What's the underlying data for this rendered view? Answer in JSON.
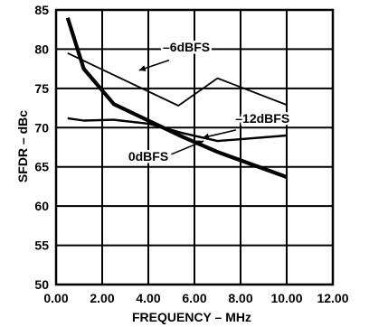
{
  "chart_data": {
    "type": "line",
    "title": "",
    "xlabel": "FREQUENCY – MHz",
    "ylabel": "SFDR – dBc",
    "xlim": [
      0,
      12
    ],
    "ylim": [
      50,
      85
    ],
    "xticks": [
      0,
      2,
      4,
      6,
      8,
      10,
      12
    ],
    "xtick_labels": [
      "0.00",
      "2.00",
      "4.00",
      "6.00",
      "8.00",
      "10.00",
      "12.00"
    ],
    "yticks": [
      50,
      55,
      60,
      65,
      70,
      75,
      80,
      85
    ],
    "ytick_labels": [
      "50",
      "55",
      "60",
      "65",
      "70",
      "75",
      "80",
      "85"
    ],
    "grid": true,
    "series": [
      {
        "name": "–6dBFS",
        "x": [
          0.5,
          5.3,
          7.0,
          10.0
        ],
        "y": [
          79.5,
          72.8,
          76.3,
          72.9
        ]
      },
      {
        "name": "–12dBFS",
        "x": [
          0.5,
          1.2,
          2.5,
          4.0,
          5.5,
          7.0,
          10.0
        ],
        "y": [
          71.2,
          70.9,
          71.0,
          70.5,
          69.3,
          68.3,
          69.0
        ]
      },
      {
        "name": "0dBFS",
        "x": [
          0.5,
          1.2,
          2.5,
          4.0,
          5.5,
          7.0,
          10.0
        ],
        "y": [
          84.0,
          77.5,
          73.0,
          70.9,
          68.8,
          66.9,
          63.7
        ]
      }
    ],
    "annotations": [
      {
        "text": "–6dBFS",
        "series": "–6dBFS"
      },
      {
        "text": "–12dBFS",
        "series": "–12dBFS"
      },
      {
        "text": "0dBFS",
        "series": "0dBFS"
      }
    ]
  }
}
